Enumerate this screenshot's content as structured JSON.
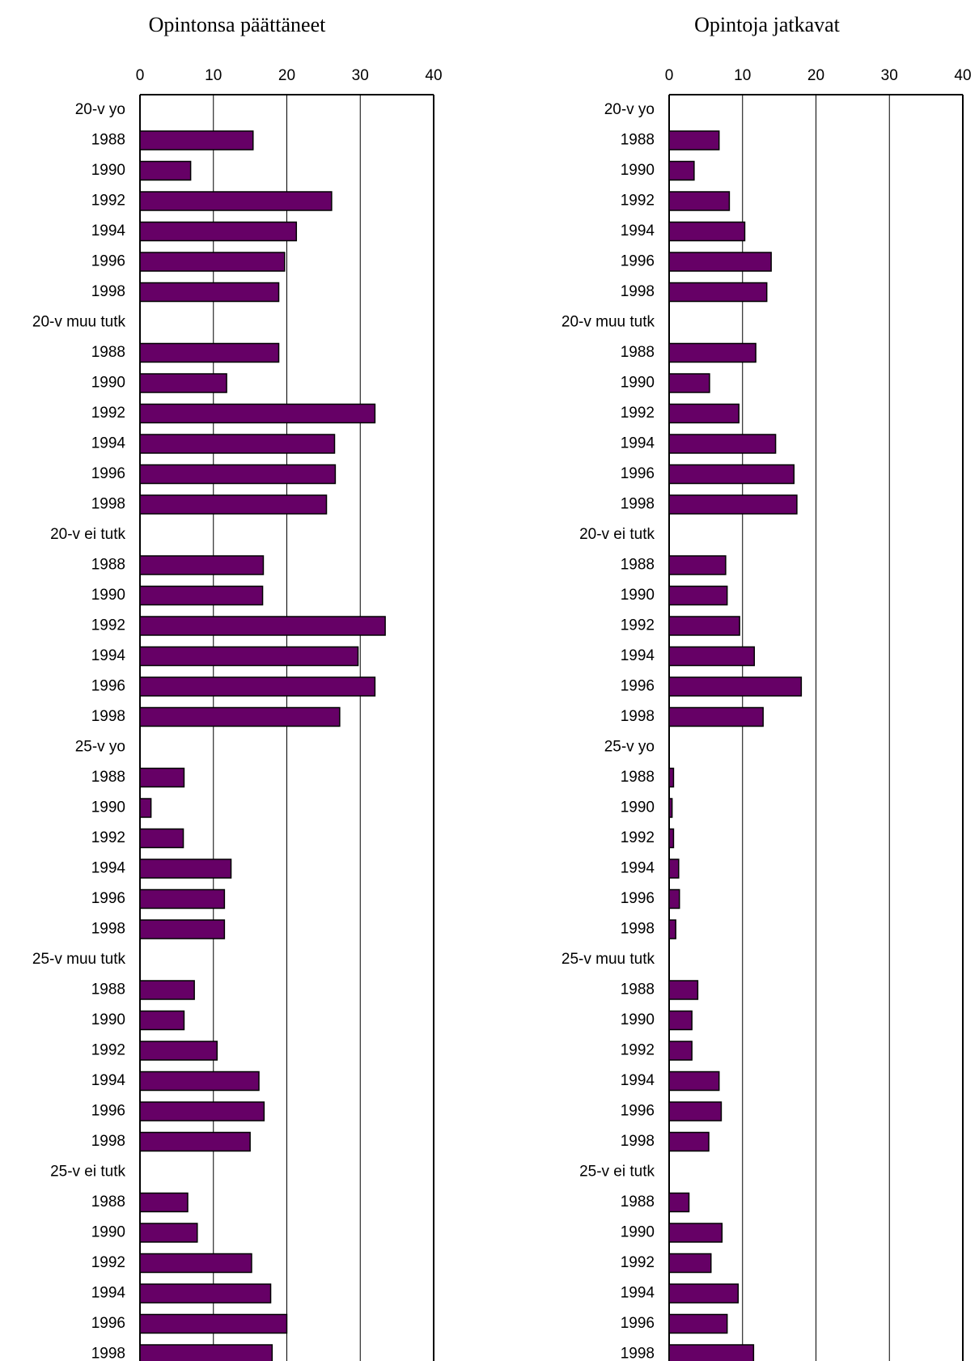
{
  "chart_data": [
    {
      "type": "bar",
      "orientation": "horizontal",
      "title": "Opintonsa päättäneet",
      "xlim": [
        0,
        40
      ],
      "xticks": [
        "0",
        "10",
        "20",
        "30",
        "40"
      ],
      "grid": true,
      "bar_color": "#660066",
      "categories": [
        "20-v yo",
        "1988",
        "1990",
        "1992",
        "1994",
        "1996",
        "1998",
        "20-v muu tutk",
        "1988",
        "1990",
        "1992",
        "1994",
        "1996",
        "1998",
        "20-v ei tutk",
        "1988",
        "1990",
        "1992",
        "1994",
        "1996",
        "1998",
        "25-v yo",
        "1988",
        "1990",
        "1992",
        "1994",
        "1996",
        "1998",
        "25-v muu tutk",
        "1988",
        "1990",
        "1992",
        "1994",
        "1996",
        "1998",
        "25-v ei tutk",
        "1988",
        "1990",
        "1992",
        "1994",
        "1996",
        "1998"
      ],
      "values": [
        null,
        15.4,
        6.9,
        26.1,
        21.3,
        19.7,
        18.9,
        null,
        18.9,
        11.8,
        32.0,
        26.5,
        26.6,
        25.4,
        null,
        16.8,
        16.7,
        33.4,
        29.7,
        32.0,
        27.2,
        null,
        6.0,
        1.5,
        5.9,
        12.4,
        11.5,
        11.5,
        null,
        7.4,
        6.0,
        10.5,
        16.2,
        16.9,
        15.0,
        null,
        6.5,
        7.8,
        15.2,
        17.8,
        20.0,
        18.0
      ]
    },
    {
      "type": "bar",
      "orientation": "horizontal",
      "title": "Opintoja jatkavat",
      "xlim": [
        0,
        40
      ],
      "xticks": [
        "0",
        "10",
        "20",
        "30",
        "40"
      ],
      "grid": true,
      "bar_color": "#660066",
      "categories": [
        "20-v yo",
        "1988",
        "1990",
        "1992",
        "1994",
        "1996",
        "1998",
        "20-v muu tutk",
        "1988",
        "1990",
        "1992",
        "1994",
        "1996",
        "1998",
        "20-v ei tutk",
        "1988",
        "1990",
        "1992",
        "1994",
        "1996",
        "1998",
        "25-v yo",
        "1988",
        "1990",
        "1992",
        "1994",
        "1996",
        "1998",
        "25-v muu tutk",
        "1988",
        "1990",
        "1992",
        "1994",
        "1996",
        "1998",
        "25-v ei tutk",
        "1988",
        "1990",
        "1992",
        "1994",
        "1996",
        "1998"
      ],
      "values": [
        null,
        6.8,
        3.4,
        8.2,
        10.3,
        13.9,
        13.3,
        null,
        11.8,
        5.5,
        9.5,
        14.5,
        17.0,
        17.4,
        null,
        7.7,
        7.9,
        9.6,
        11.6,
        18.0,
        12.8,
        null,
        0.6,
        0.4,
        0.6,
        1.3,
        1.4,
        0.9,
        null,
        3.9,
        3.1,
        3.1,
        6.8,
        7.1,
        5.4,
        null,
        2.7,
        7.2,
        5.7,
        9.4,
        7.9,
        11.5
      ]
    }
  ]
}
